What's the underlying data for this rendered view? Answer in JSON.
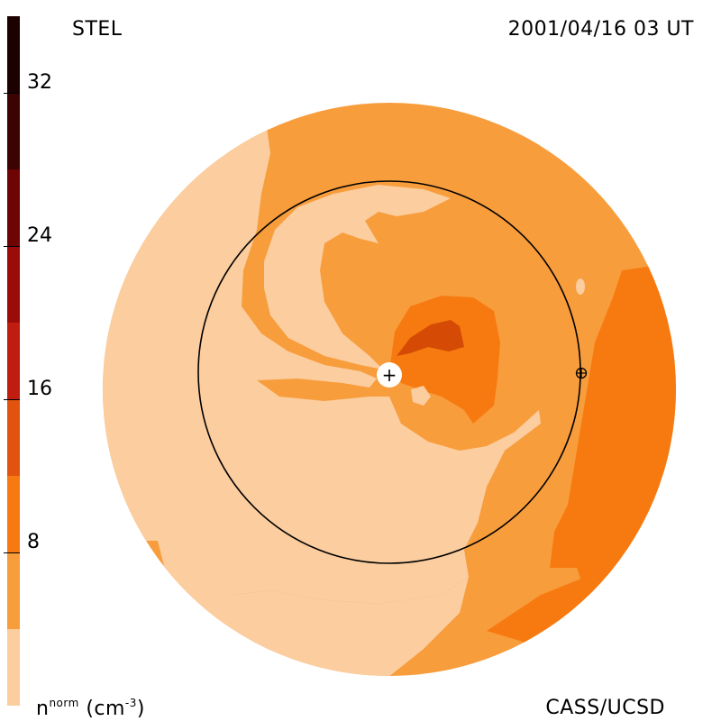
{
  "header": {
    "source": "STEL",
    "timestamp": "2001/04/16 03 UT"
  },
  "footer": {
    "credit": "CASS/UCSD",
    "units_base": "n",
    "units_sup": "norm",
    "units_unit": "(cm",
    "units_exp": "-3",
    "units_close": ")"
  },
  "colorbar": {
    "ticks": [
      "32",
      "24",
      "16",
      "8"
    ],
    "tick_values": [
      32,
      24,
      16,
      8
    ],
    "range": [
      0,
      36
    ],
    "levels": [
      {
        "min": 0,
        "max": 4,
        "color": "#fbcd9f"
      },
      {
        "min": 4,
        "max": 8,
        "color": "#f89d3c"
      },
      {
        "min": 8,
        "max": 12,
        "color": "#f77a10"
      },
      {
        "min": 12,
        "max": 16,
        "color": "#e2530f"
      },
      {
        "min": 16,
        "max": 20,
        "color": "#c01d10"
      },
      {
        "min": 20,
        "max": 24,
        "color": "#9b0c08"
      },
      {
        "min": 24,
        "max": 28,
        "color": "#6e0404"
      },
      {
        "min": 28,
        "max": 32,
        "color": "#3c0303"
      },
      {
        "min": 32,
        "max": 36,
        "color": "#1c0101"
      }
    ]
  },
  "markers": {
    "sun_symbol": "+",
    "earth_symbol": "⊕"
  },
  "colors": {
    "pale": "#fbcd9f",
    "light": "#f89d3c",
    "mid": "#f77a10",
    "dark": "#e2530f",
    "darker": "#d54a05"
  }
}
